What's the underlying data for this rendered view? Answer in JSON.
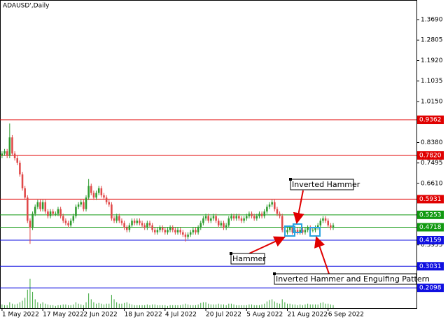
{
  "chart_data": {
    "type": "candlestick",
    "title": "ADAUSD',Daily",
    "open": [
      0.78,
      0.79,
      0.8,
      0.78,
      0.86,
      0.79,
      0.77,
      0.75,
      0.7,
      0.64,
      0.6,
      0.5,
      0.47,
      0.53,
      0.56,
      0.58,
      0.55,
      0.58,
      0.54,
      0.52,
      0.54,
      0.53,
      0.53,
      0.55,
      0.52,
      0.5,
      0.49,
      0.48,
      0.5,
      0.52,
      0.56,
      0.57,
      0.58,
      0.55,
      0.6,
      0.65,
      0.62,
      0.6,
      0.62,
      0.64,
      0.61,
      0.6,
      0.58,
      0.57,
      0.51,
      0.5,
      0.52,
      0.5,
      0.49,
      0.47,
      0.46,
      0.48,
      0.5,
      0.49,
      0.5,
      0.49,
      0.48,
      0.47,
      0.49,
      0.48,
      0.46,
      0.45,
      0.46,
      0.47,
      0.46,
      0.45,
      0.46,
      0.47,
      0.46,
      0.45,
      0.46,
      0.45,
      0.44,
      0.43,
      0.44,
      0.45,
      0.46,
      0.45,
      0.47,
      0.49,
      0.51,
      0.52,
      0.5,
      0.51,
      0.52,
      0.5,
      0.48,
      0.49,
      0.47,
      0.48,
      0.51,
      0.52,
      0.51,
      0.52,
      0.51,
      0.5,
      0.51,
      0.52,
      0.53,
      0.52,
      0.51,
      0.52,
      0.53,
      0.52,
      0.54,
      0.56,
      0.57,
      0.58,
      0.55,
      0.53,
      0.52,
      0.46,
      0.45,
      0.46,
      0.47,
      0.45,
      0.46,
      0.45,
      0.46,
      0.45,
      0.46,
      0.47,
      0.46,
      0.46,
      0.47,
      0.48,
      0.5,
      0.51,
      0.5,
      0.48,
      0.47
    ],
    "high": [
      0.8,
      0.81,
      0.81,
      0.92,
      0.87,
      0.8,
      0.78,
      0.76,
      0.71,
      0.65,
      0.61,
      0.51,
      0.54,
      0.57,
      0.59,
      0.59,
      0.59,
      0.59,
      0.55,
      0.55,
      0.55,
      0.54,
      0.56,
      0.56,
      0.53,
      0.51,
      0.5,
      0.51,
      0.53,
      0.57,
      0.58,
      0.59,
      0.59,
      0.61,
      0.68,
      0.66,
      0.63,
      0.63,
      0.65,
      0.65,
      0.62,
      0.61,
      0.59,
      0.58,
      0.52,
      0.53,
      0.53,
      0.51,
      0.5,
      0.48,
      0.49,
      0.51,
      0.51,
      0.51,
      0.51,
      0.5,
      0.49,
      0.5,
      0.5,
      0.49,
      0.47,
      0.47,
      0.48,
      0.48,
      0.47,
      0.47,
      0.48,
      0.48,
      0.47,
      0.47,
      0.47,
      0.46,
      0.45,
      0.45,
      0.46,
      0.47,
      0.47,
      0.48,
      0.5,
      0.52,
      0.53,
      0.53,
      0.52,
      0.53,
      0.53,
      0.51,
      0.5,
      0.5,
      0.49,
      0.52,
      0.53,
      0.53,
      0.53,
      0.53,
      0.52,
      0.52,
      0.53,
      0.54,
      0.54,
      0.53,
      0.53,
      0.54,
      0.54,
      0.55,
      0.57,
      0.58,
      0.59,
      0.59,
      0.56,
      0.54,
      0.53,
      0.47,
      0.47,
      0.48,
      0.48,
      0.47,
      0.47,
      0.47,
      0.47,
      0.47,
      0.48,
      0.48,
      0.47,
      0.48,
      0.49,
      0.51,
      0.52,
      0.52,
      0.51,
      0.49,
      0.49
    ],
    "low": [
      0.77,
      0.78,
      0.77,
      0.77,
      0.78,
      0.76,
      0.74,
      0.69,
      0.63,
      0.59,
      0.49,
      0.4,
      0.46,
      0.52,
      0.55,
      0.54,
      0.54,
      0.53,
      0.51,
      0.51,
      0.52,
      0.52,
      0.52,
      0.51,
      0.49,
      0.48,
      0.47,
      0.47,
      0.49,
      0.51,
      0.55,
      0.56,
      0.54,
      0.54,
      0.59,
      0.61,
      0.59,
      0.59,
      0.61,
      0.6,
      0.59,
      0.57,
      0.56,
      0.5,
      0.49,
      0.49,
      0.49,
      0.48,
      0.46,
      0.45,
      0.45,
      0.47,
      0.48,
      0.48,
      0.48,
      0.47,
      0.46,
      0.46,
      0.47,
      0.45,
      0.44,
      0.44,
      0.45,
      0.45,
      0.44,
      0.44,
      0.45,
      0.45,
      0.44,
      0.44,
      0.44,
      0.43,
      0.41,
      0.42,
      0.43,
      0.44,
      0.44,
      0.44,
      0.46,
      0.48,
      0.5,
      0.49,
      0.49,
      0.5,
      0.49,
      0.47,
      0.47,
      0.46,
      0.46,
      0.47,
      0.5,
      0.5,
      0.5,
      0.5,
      0.49,
      0.49,
      0.5,
      0.51,
      0.51,
      0.5,
      0.5,
      0.51,
      0.51,
      0.51,
      0.53,
      0.55,
      0.56,
      0.54,
      0.52,
      0.51,
      0.45,
      0.44,
      0.44,
      0.45,
      0.44,
      0.44,
      0.44,
      0.44,
      0.44,
      0.44,
      0.45,
      0.45,
      0.45,
      0.45,
      0.46,
      0.47,
      0.49,
      0.49,
      0.47,
      0.46,
      0.46
    ],
    "close": [
      0.79,
      0.8,
      0.78,
      0.86,
      0.79,
      0.77,
      0.75,
      0.7,
      0.64,
      0.6,
      0.5,
      0.47,
      0.53,
      0.56,
      0.58,
      0.55,
      0.58,
      0.54,
      0.52,
      0.54,
      0.53,
      0.53,
      0.55,
      0.52,
      0.5,
      0.49,
      0.48,
      0.5,
      0.52,
      0.56,
      0.57,
      0.58,
      0.55,
      0.6,
      0.65,
      0.62,
      0.6,
      0.62,
      0.64,
      0.61,
      0.6,
      0.58,
      0.57,
      0.51,
      0.5,
      0.52,
      0.5,
      0.49,
      0.47,
      0.46,
      0.48,
      0.5,
      0.49,
      0.5,
      0.49,
      0.48,
      0.47,
      0.49,
      0.48,
      0.46,
      0.45,
      0.46,
      0.47,
      0.46,
      0.45,
      0.46,
      0.47,
      0.46,
      0.45,
      0.46,
      0.45,
      0.44,
      0.43,
      0.44,
      0.45,
      0.46,
      0.45,
      0.47,
      0.49,
      0.51,
      0.52,
      0.5,
      0.51,
      0.52,
      0.5,
      0.48,
      0.49,
      0.47,
      0.48,
      0.51,
      0.52,
      0.51,
      0.52,
      0.51,
      0.5,
      0.51,
      0.52,
      0.53,
      0.52,
      0.51,
      0.52,
      0.53,
      0.52,
      0.54,
      0.56,
      0.57,
      0.58,
      0.55,
      0.53,
      0.52,
      0.46,
      0.45,
      0.46,
      0.47,
      0.45,
      0.46,
      0.45,
      0.46,
      0.45,
      0.46,
      0.47,
      0.46,
      0.46,
      0.47,
      0.48,
      0.5,
      0.51,
      0.5,
      0.48,
      0.47,
      0.48
    ],
    "volume": [
      5,
      4,
      4,
      8,
      6,
      5,
      6,
      8,
      10,
      14,
      25,
      40,
      22,
      12,
      8,
      6,
      8,
      6,
      5,
      4,
      4,
      3,
      4,
      4,
      5,
      5,
      4,
      4,
      5,
      8,
      6,
      5,
      4,
      8,
      20,
      12,
      8,
      6,
      7,
      6,
      5,
      6,
      6,
      18,
      12,
      8,
      6,
      6,
      7,
      8,
      6,
      5,
      4,
      4,
      4,
      4,
      4,
      5,
      4,
      5,
      5,
      4,
      4,
      4,
      4,
      3,
      4,
      4,
      4,
      4,
      4,
      5,
      6,
      5,
      4,
      4,
      4,
      5,
      7,
      8,
      8,
      6,
      5,
      5,
      5,
      6,
      5,
      5,
      4,
      6,
      6,
      5,
      4,
      4,
      4,
      4,
      4,
      5,
      5,
      4,
      4,
      4,
      5,
      6,
      9,
      11,
      12,
      9,
      7,
      6,
      12,
      8,
      6,
      6,
      5,
      5,
      4,
      5,
      4,
      5,
      6,
      5,
      5,
      5,
      5,
      7,
      8,
      6,
      6,
      5,
      4
    ],
    "up_color": "#2e9b2e",
    "down_color": "#e04848",
    "volume_color": "#3aa63a",
    "xlim": [
      -0.8,
      162.7
    ],
    "xticks": [
      {
        "value": 0,
        "label": "1 May 2022"
      },
      {
        "value": 16,
        "label": "17 May 2022"
      },
      {
        "value": 32,
        "label": "2 Jun 2022"
      },
      {
        "value": 48,
        "label": "18 Jun 2022"
      },
      {
        "value": 64,
        "label": "4 Jul 2022"
      },
      {
        "value": 80,
        "label": "20 Jul 2022"
      },
      {
        "value": 96,
        "label": "5 Aug 2022"
      },
      {
        "value": 112,
        "label": "21 Aug 2022"
      },
      {
        "value": 128,
        "label": "6 Sep 2022"
      }
    ],
    "ylim": [
      0.1224,
      1.4537
    ],
    "yticks": [
      {
        "value": 1.369,
        "label": "1.3690"
      },
      {
        "value": 1.2805,
        "label": "1.2805"
      },
      {
        "value": 1.192,
        "label": "1.1920"
      },
      {
        "value": 1.1035,
        "label": "1.1035"
      },
      {
        "value": 1.015,
        "label": "1.0150"
      },
      {
        "value": 0.838,
        "label": "0.8380"
      },
      {
        "value": 0.7495,
        "label": "0.7495"
      },
      {
        "value": 0.661,
        "label": "0.6610"
      },
      {
        "value": 0.3955,
        "label": "0.3955"
      }
    ],
    "levels": [
      {
        "value": 0.9362,
        "label": "0.9362",
        "color": "#e00000"
      },
      {
        "value": 0.782,
        "label": "0.7820",
        "color": "#e00000"
      },
      {
        "value": 0.5931,
        "label": "0.5931",
        "color": "#e00000"
      },
      {
        "value": 0.5253,
        "label": "0.5253",
        "color": "#119911"
      },
      {
        "value": 0.4718,
        "label": "0.4718",
        "color": "#119911"
      },
      {
        "value": 0.4159,
        "label": "0.4159",
        "color": "#1010e0"
      },
      {
        "value": 0.3031,
        "label": "0.3031",
        "color": "#1010e0"
      },
      {
        "value": 0.2098,
        "label": "0.2098",
        "color": "#1010e0"
      }
    ],
    "annotations": [
      {
        "text": "Inverted Hammer"
      },
      {
        "text": "Hammer"
      },
      {
        "text": "Inverted Hammer and Engulfing Pattern"
      }
    ]
  }
}
